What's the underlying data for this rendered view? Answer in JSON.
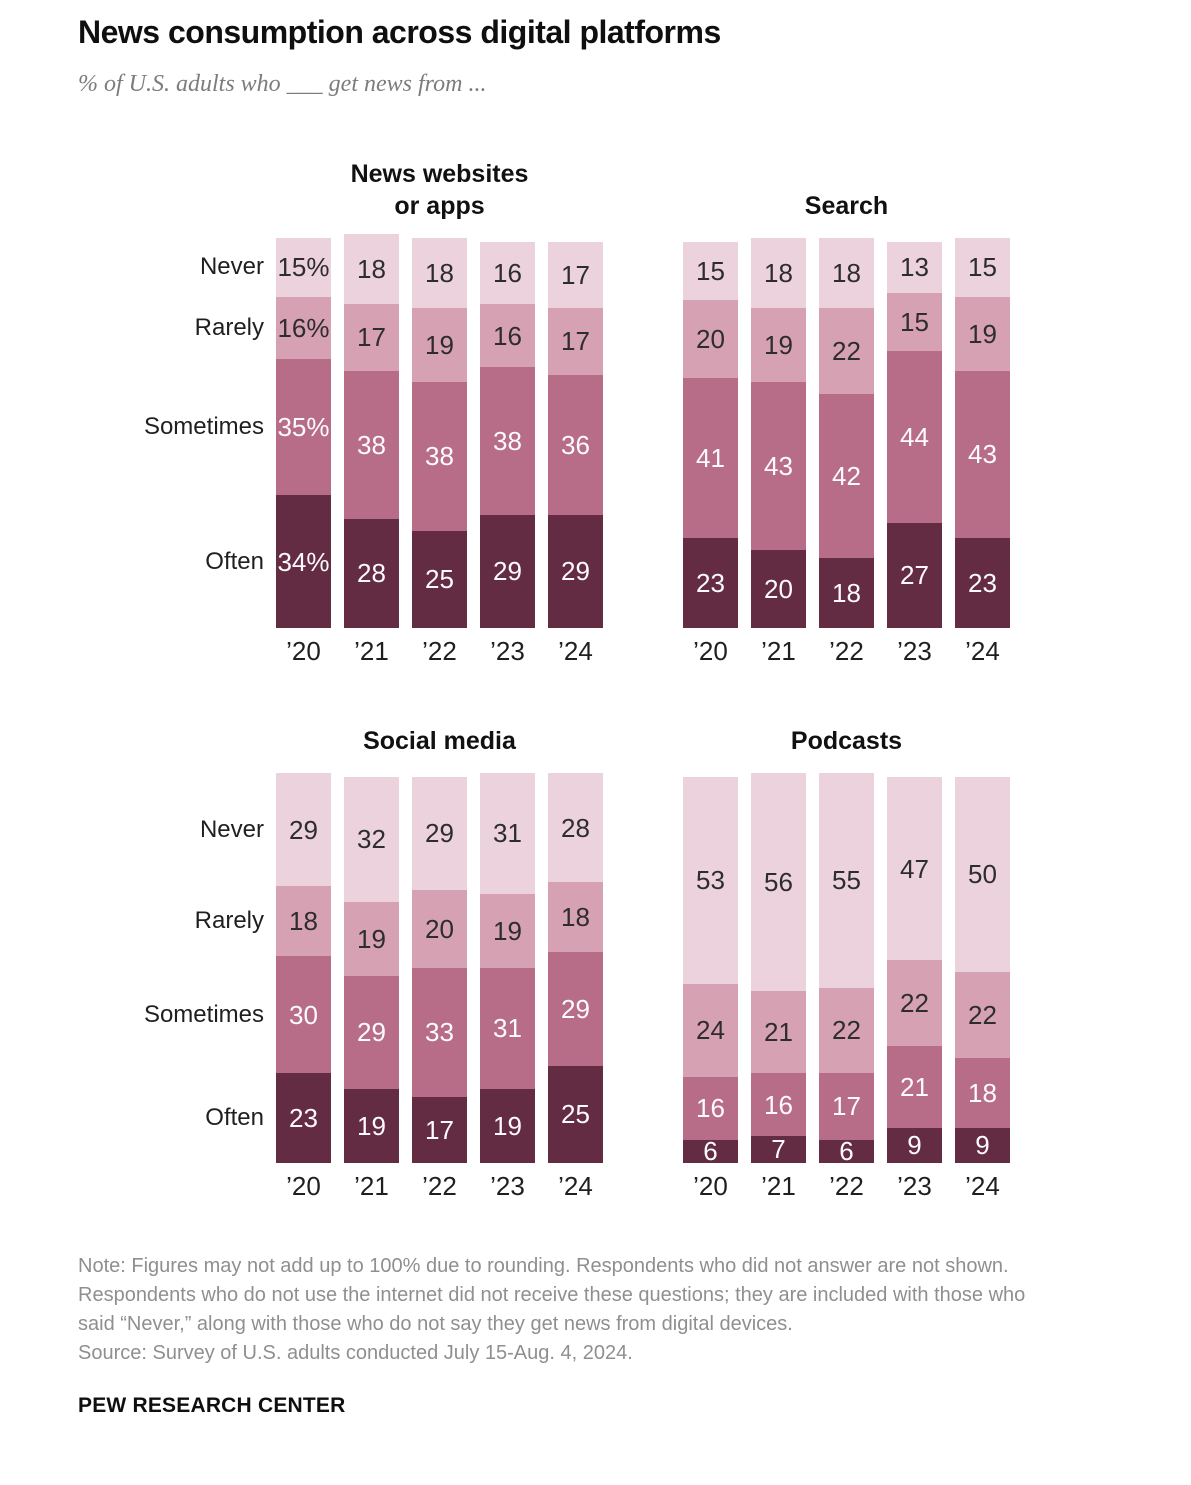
{
  "header": {
    "title": "News consumption across digital platforms",
    "subtitle": "% of U.S. adults who ___ get news from ..."
  },
  "chart_data": {
    "type": "bar",
    "stacked": true,
    "unit": "percent",
    "orientation": "vertical",
    "categories": [
      "’20",
      "’21",
      "’22",
      "’23",
      "’24"
    ],
    "rows": [
      {
        "key": "never",
        "label": "Never",
        "color": "#ecd2dc",
        "text_color": "#2d2d2d"
      },
      {
        "key": "rarely",
        "label": "Rarely",
        "color": "#d7a1b4",
        "text_color": "#2d2d2d"
      },
      {
        "key": "sometimes",
        "label": "Sometimes",
        "color": "#b76d88",
        "text_color": "#fdfbfc"
      },
      {
        "key": "often",
        "label": "Often",
        "color": "#642c43",
        "text_color": "#fdfbfc"
      }
    ],
    "charts": [
      {
        "title_lines": [
          "News websites",
          "or apps"
        ],
        "show_row_labels": true,
        "first_bar_percent_suffix": true,
        "values": {
          "never": [
            15,
            18,
            18,
            16,
            17
          ],
          "rarely": [
            16,
            17,
            19,
            16,
            17
          ],
          "sometimes": [
            35,
            38,
            38,
            38,
            36
          ],
          "often": [
            34,
            28,
            25,
            29,
            29
          ]
        }
      },
      {
        "title_lines": [
          "Search"
        ],
        "show_row_labels": false,
        "first_bar_percent_suffix": false,
        "values": {
          "never": [
            15,
            18,
            18,
            13,
            15
          ],
          "rarely": [
            20,
            19,
            22,
            15,
            19
          ],
          "sometimes": [
            41,
            43,
            42,
            44,
            43
          ],
          "often": [
            23,
            20,
            18,
            27,
            23
          ]
        }
      },
      {
        "title_lines": [
          "Social media"
        ],
        "show_row_labels": true,
        "first_bar_percent_suffix": false,
        "values": {
          "never": [
            29,
            32,
            29,
            31,
            28
          ],
          "rarely": [
            18,
            19,
            20,
            19,
            18
          ],
          "sometimes": [
            30,
            29,
            33,
            31,
            29
          ],
          "often": [
            23,
            19,
            17,
            19,
            25
          ]
        }
      },
      {
        "title_lines": [
          "Podcasts"
        ],
        "show_row_labels": false,
        "first_bar_percent_suffix": false,
        "values": {
          "never": [
            53,
            56,
            55,
            47,
            50
          ],
          "rarely": [
            24,
            21,
            22,
            22,
            22
          ],
          "sometimes": [
            16,
            16,
            17,
            21,
            18
          ],
          "often": [
            6,
            7,
            6,
            9,
            9
          ]
        }
      }
    ]
  },
  "footer": {
    "note": "Note: Figures may not add up to 100% due to rounding. Respondents who did not answer are not shown. Respondents who do not use the internet did not receive these questions; they are included with those who said “Never,” along with those who do not say they get news from digital devices.",
    "source": "Source: Survey of U.S. adults conducted July 15-Aug. 4, 2024.",
    "brand": "PEW RESEARCH CENTER"
  }
}
